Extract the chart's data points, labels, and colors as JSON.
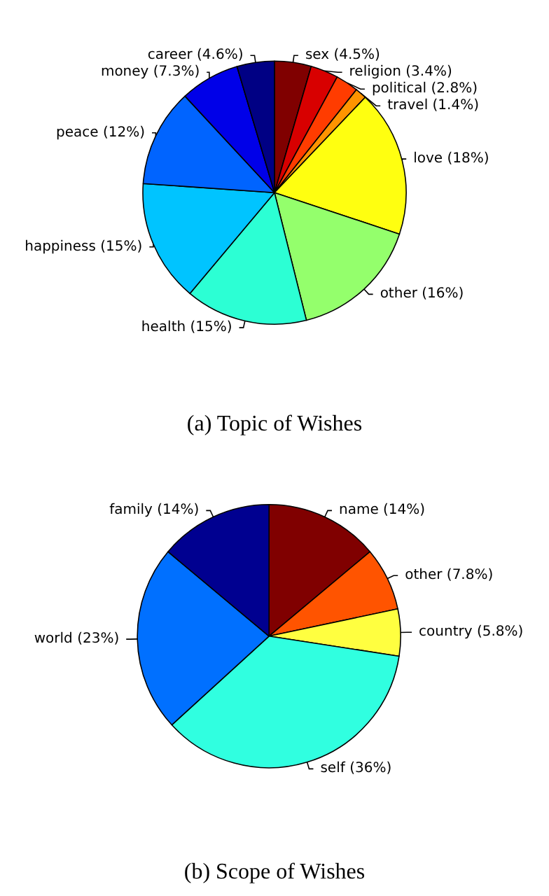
{
  "chart_data": [
    {
      "type": "pie",
      "title": "(a) Topic of Wishes",
      "categories": [
        "sex",
        "religion",
        "political",
        "travel",
        "love",
        "other",
        "health",
        "happiness",
        "peace",
        "money",
        "career"
      ],
      "values": [
        4.5,
        3.4,
        2.8,
        1.4,
        18,
        16,
        15,
        15,
        12,
        7.3,
        4.6
      ],
      "value_labels": [
        "(4.5%)",
        "(3.4%)",
        "(2.8%)",
        "(1.4%)",
        "(18%)",
        "(16%)",
        "(15%)",
        "(15%)",
        "(12%)",
        "(7.3%)",
        "(4.6%)"
      ],
      "colors": [
        "#800000",
        "#d80000",
        "#ff3c00",
        "#ff9400",
        "#ffff10",
        "#94ff6c",
        "#2cffd4",
        "#00c4ff",
        "#0064ff",
        "#0000e8",
        "#000084"
      ]
    },
    {
      "type": "pie",
      "title": "(b) Scope of Wishes",
      "categories": [
        "name",
        "other",
        "country",
        "self",
        "world",
        "family"
      ],
      "values": [
        14,
        7.8,
        5.8,
        36,
        23,
        14
      ],
      "value_labels": [
        "(14%)",
        "(7.8%)",
        "(5.8%)",
        "(36%)",
        "(23%)",
        "(14%)"
      ],
      "colors": [
        "#800000",
        "#ff5400",
        "#ffff40",
        "#30ffe0",
        "#0070ff",
        "#000090"
      ]
    }
  ]
}
